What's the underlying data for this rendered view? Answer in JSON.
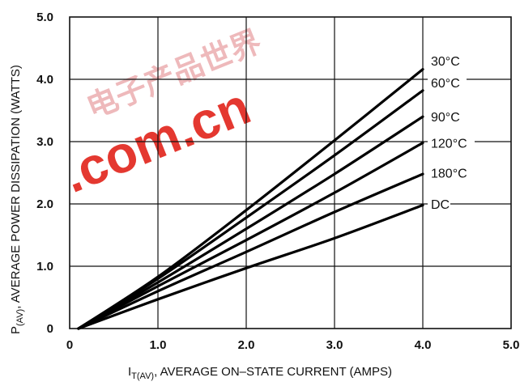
{
  "chart_data": {
    "type": "line",
    "xlabel": {
      "main_pre": "I",
      "sub": "T(AV)",
      "main_post": ", AVERAGE ON–STATE CURRENT (AMPS)"
    },
    "ylabel": {
      "main_pre": "P",
      "sub": "(AV)",
      "main_post": ", AVERAGE POWER DISSIPATION (WATTS)"
    },
    "xlim": [
      0,
      5
    ],
    "ylim": [
      0,
      5
    ],
    "x_ticks": [
      "0",
      "1.0",
      "2.0",
      "3.0",
      "4.0",
      "5.0"
    ],
    "y_ticks": [
      "0",
      "1.0",
      "2.0",
      "3.0",
      "4.0",
      "5.0"
    ],
    "grid": true,
    "series": [
      {
        "name": "30°C",
        "x": [
          0.1,
          1.0,
          2.0,
          3.0,
          4.0
        ],
        "y": [
          0.0,
          0.83,
          1.9,
          3.02,
          4.16
        ]
      },
      {
        "name": "60°C",
        "x": [
          0.1,
          1.0,
          2.0,
          3.0,
          4.0
        ],
        "y": [
          0.0,
          0.8,
          1.78,
          2.78,
          3.82
        ]
      },
      {
        "name": "90°C",
        "x": [
          0.1,
          1.0,
          2.0,
          3.0,
          4.0
        ],
        "y": [
          0.0,
          0.74,
          1.6,
          2.48,
          3.4
        ]
      },
      {
        "name": "120°C",
        "x": [
          0.1,
          1.0,
          2.0,
          3.0,
          4.0
        ],
        "y": [
          0.0,
          0.68,
          1.42,
          2.18,
          2.98
        ]
      },
      {
        "name": "180°C",
        "x": [
          0.1,
          1.0,
          2.0,
          3.0,
          4.0
        ],
        "y": [
          0.0,
          0.6,
          1.23,
          1.87,
          2.48
        ]
      },
      {
        "name": "DC",
        "x": [
          0.1,
          1.0,
          2.0,
          3.0,
          4.0
        ],
        "y": [
          0.0,
          0.47,
          0.97,
          1.45,
          1.98
        ]
      }
    ],
    "labels_y": [
      4.3,
      3.95,
      3.4,
      2.98,
      2.5,
      2.0
    ]
  },
  "watermark": {
    "text": ".com.cn",
    "glyphs": "电子产品世界"
  }
}
